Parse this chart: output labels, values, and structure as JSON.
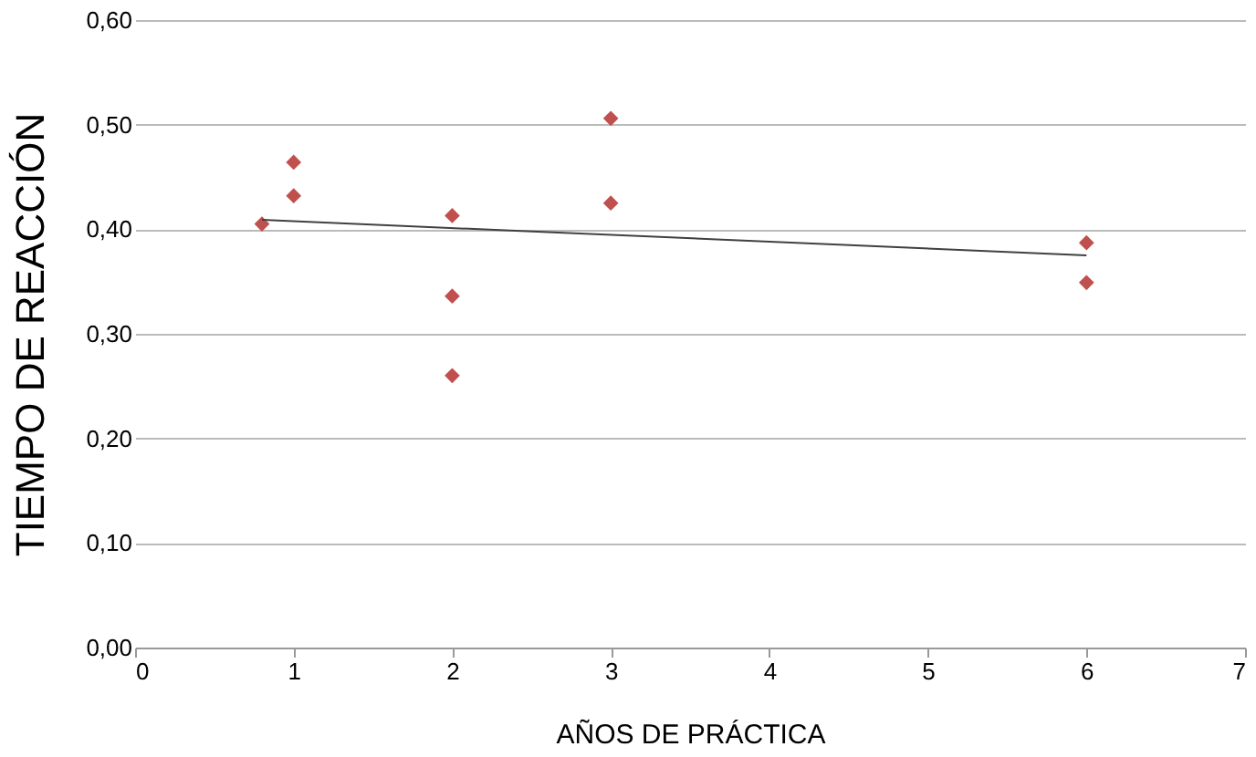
{
  "chart_data": {
    "type": "scatter",
    "xlabel": "AÑOS DE PRÁCTICA",
    "ylabel": "TIEMPO DE  REACCIÓN",
    "series": [
      {
        "color": "#c0504d",
        "marker": "diamond",
        "x": [
          0.8,
          1,
          1,
          2,
          2,
          2,
          3,
          3,
          6,
          6
        ],
        "values": [
          0.405,
          0.464,
          0.432,
          0.413,
          0.336,
          0.26,
          0.506,
          0.425,
          0.387,
          0.349
        ]
      },
      {
        "type": "line",
        "color": "#404040",
        "x": [
          0.8,
          6
        ],
        "values": [
          0.409,
          0.375
        ]
      }
    ],
    "xlim": [
      0,
      7
    ],
    "xticks": [
      0,
      1,
      2,
      3,
      4,
      5,
      6,
      7
    ],
    "ylim": [
      0,
      0.6
    ],
    "yticks": [
      {
        "value": 0,
        "label": "0,00"
      },
      {
        "value": 0.1,
        "label": "0,10"
      },
      {
        "value": 0.2,
        "label": "0,20"
      },
      {
        "value": 0.3,
        "label": "0,30"
      },
      {
        "value": 0.4,
        "label": "0,40"
      },
      {
        "value": 0.5,
        "label": "0,50"
      },
      {
        "value": 0.6,
        "label": "0,60"
      }
    ],
    "grid": "y"
  }
}
